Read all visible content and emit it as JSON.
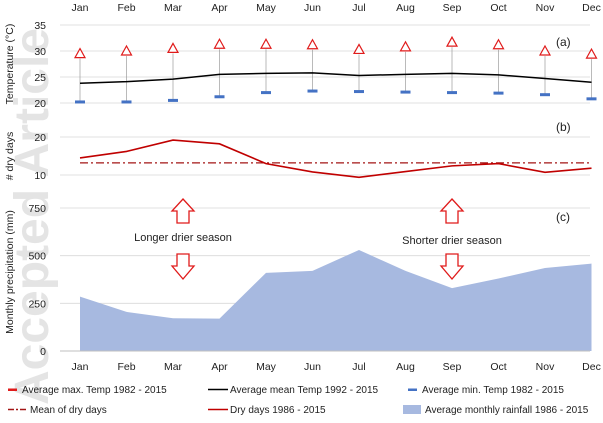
{
  "chart_data": [
    {
      "id": "temperature",
      "panel_label": "(a)",
      "type": "line",
      "ylabel": "Temperature (°C)",
      "ylim": [
        20,
        35
      ],
      "yticks": [
        20,
        25,
        30,
        35
      ],
      "categories": [
        "Jan",
        "Feb",
        "Mar",
        "Apr",
        "May",
        "Jun",
        "Jul",
        "Aug",
        "Sep",
        "Oct",
        "Nov",
        "Dec"
      ],
      "series": [
        {
          "name": "Average max. Temp 1982 - 2015",
          "marker": "triangle",
          "color": "#e01b1b",
          "values": [
            29.5,
            30.0,
            30.5,
            31.3,
            31.3,
            31.2,
            30.3,
            30.8,
            31.7,
            31.2,
            30.0,
            29.4
          ]
        },
        {
          "name": "Average mean Temp 1992 - 2015",
          "marker": "line",
          "color": "#000000",
          "values": [
            23.8,
            24.1,
            24.6,
            25.5,
            25.7,
            25.8,
            25.3,
            25.5,
            25.7,
            25.4,
            24.7,
            24.0
          ]
        },
        {
          "name": "Average min. Temp 1982 - 2015",
          "marker": "dash",
          "color": "#4472c4",
          "values": [
            20.2,
            20.2,
            20.5,
            21.2,
            22.0,
            22.3,
            22.2,
            22.1,
            22.0,
            21.9,
            21.6,
            20.8
          ]
        }
      ]
    },
    {
      "id": "dry_days",
      "panel_label": "(b)",
      "type": "line",
      "ylabel": "# dry days",
      "ylim": [
        5,
        25
      ],
      "yticks": [
        10,
        20
      ],
      "categories": [
        "Jan",
        "Feb",
        "Mar",
        "Apr",
        "May",
        "Jun",
        "Jul",
        "Aug",
        "Sep",
        "Oct",
        "Nov",
        "Dec"
      ],
      "series": [
        {
          "name": "Mean of dry days",
          "style": "dash-dot",
          "color": "#a31515",
          "values": [
            13.2,
            13.2,
            13.2,
            13.2,
            13.2,
            13.2,
            13.2,
            13.2,
            13.2,
            13.2,
            13.2,
            13.2
          ]
        },
        {
          "name": "Dry days 1986 - 2015",
          "style": "solid",
          "color": "#c00000",
          "values": [
            14.5,
            16.2,
            19.2,
            18.2,
            13.0,
            10.8,
            9.4,
            10.9,
            12.4,
            13.0,
            10.7,
            11.8
          ]
        }
      ]
    },
    {
      "id": "rainfall",
      "panel_label": "(c)",
      "type": "area",
      "ylabel": "Monthly precipitation (mm)",
      "ylim": [
        0,
        750
      ],
      "yticks": [
        0,
        250,
        500,
        750
      ],
      "categories": [
        "Jan",
        "Feb",
        "Mar",
        "Apr",
        "May",
        "Jun",
        "Jul",
        "Aug",
        "Sep",
        "Oct",
        "Nov",
        "Dec"
      ],
      "series": [
        {
          "name": "Average monthly rainfall 1986 - 2015",
          "color": "#a7b9e0",
          "values": [
            285,
            205,
            172,
            170,
            410,
            420,
            530,
            420,
            330,
            380,
            435,
            458
          ]
        }
      ],
      "annotations": [
        "Longer drier season",
        "Shorter drier season"
      ]
    }
  ],
  "top_axis_labels": [
    "Jan",
    "Feb",
    "Mar",
    "Apr",
    "May",
    "Jun",
    "Jul",
    "Aug",
    "Sep",
    "Oct",
    "Nov",
    "Dec"
  ],
  "legend": [
    {
      "label": "Average max. Temp 1982 - 2015",
      "symbol": "dash",
      "color": "#e01b1b"
    },
    {
      "label": "Average mean Temp 1992 - 2015",
      "symbol": "line",
      "color": "#000000"
    },
    {
      "label": "Average min. Temp 1982 - 2015",
      "symbol": "dash",
      "color": "#4472c4"
    },
    {
      "label": "Mean of dry days",
      "symbol": "dashdot",
      "color": "#a31515"
    },
    {
      "label": "Dry days 1986 - 2015",
      "symbol": "line",
      "color": "#c00000"
    },
    {
      "label": "Average monthly rainfall 1986 - 2015",
      "symbol": "box",
      "color": "#a7b9e0"
    }
  ],
  "watermark": "Accepted Article"
}
